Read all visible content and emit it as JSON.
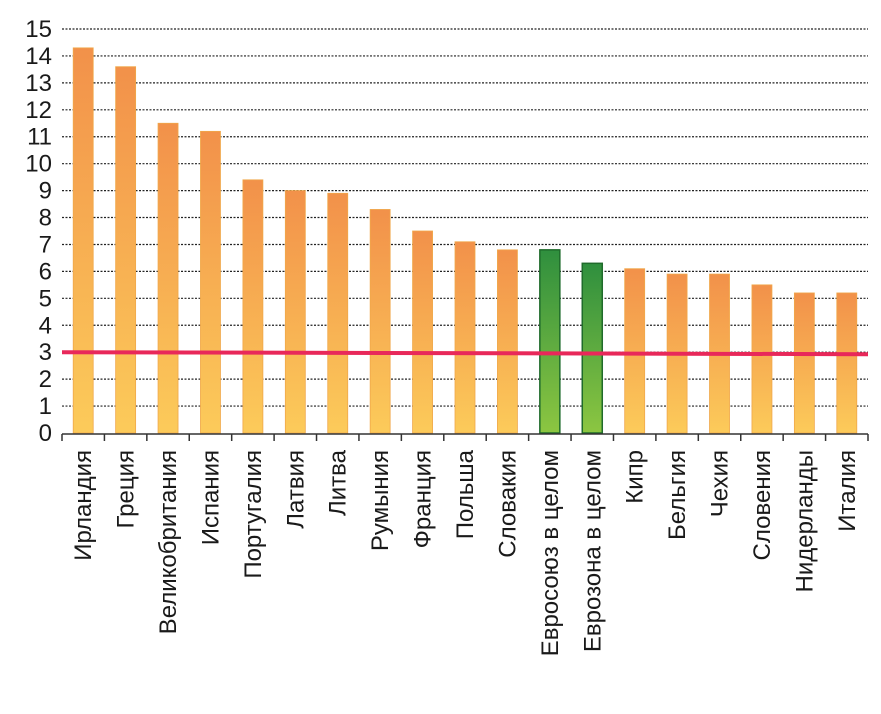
{
  "chart_data": {
    "type": "bar",
    "title": "",
    "xlabel": "",
    "ylabel": "",
    "ylim": [
      0,
      15
    ],
    "yticks": [
      "0",
      "1",
      "2",
      "3",
      "4",
      "5",
      "6",
      "7",
      "8",
      "9",
      "10",
      "11",
      "12",
      "13",
      "14",
      "15"
    ],
    "grid": true,
    "categories": [
      "Ирландия",
      "Греция",
      "Великобритания",
      "Испания",
      "Португалия",
      "Латвия",
      "Литва",
      "Румыния",
      "Франция",
      "Польша",
      "Словакия",
      "Евросоюз в целом",
      "Еврозона в целом",
      "Кипр",
      "Бельгия",
      "Чехия",
      "Словения",
      "Нидерланды",
      "Италия"
    ],
    "values": [
      14.3,
      13.6,
      11.5,
      11.2,
      9.4,
      9.0,
      8.9,
      8.3,
      7.5,
      7.1,
      6.8,
      6.8,
      6.3,
      6.1,
      5.9,
      5.9,
      5.5,
      5.2,
      5.2
    ],
    "highlighted": [
      "Евросоюз в целом",
      "Еврозона в целом"
    ],
    "reference_line": {
      "value": 3,
      "color": "#e8285a"
    },
    "colors": {
      "bar_top": "#f2914a",
      "bar_bottom": "#fccb5a",
      "bar_stroke": "#f0a84a",
      "highlight_top": "#2f8f3e",
      "highlight_bottom": "#8cc641",
      "highlight_stroke": "#1f6b2b",
      "grid": "#222222",
      "axis": "#333333"
    }
  }
}
